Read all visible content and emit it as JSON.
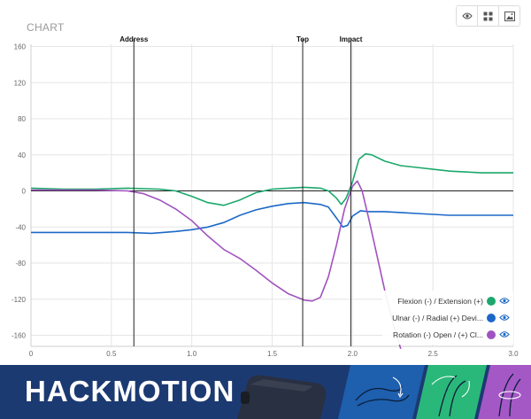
{
  "chart_title": "CHART",
  "toolbar": {
    "icons": [
      "eye-icon",
      "grid-icon",
      "image-icon"
    ]
  },
  "colors": {
    "flexion": "#1ca86c",
    "ulnar": "#1c68c8",
    "rotation": "#a052c0",
    "footer_bg": "#1c3a72",
    "tile_blue": "#1e5fae",
    "tile_green": "#2ab87a",
    "tile_purple": "#a458c6"
  },
  "legend": [
    {
      "label": "Flexion (-) / Extension (+)",
      "color": "#1ca86c"
    },
    {
      "label": "Ulnar (-) / Radial (+) Devi...",
      "color": "#1c68c8"
    },
    {
      "label": "Rotation (-) Open / (+) Cl...",
      "color": "#a052c0"
    }
  ],
  "footer": {
    "logo_text": "HACKMOTION"
  },
  "chart_data": {
    "type": "line",
    "xlim": [
      0,
      3.0
    ],
    "ylim": [
      -170,
      165
    ],
    "x_ticks": [
      "0",
      "0.5",
      "1.0",
      "1.5",
      "2.0",
      "2.5",
      "3.0"
    ],
    "y_ticks": [
      "160",
      "120",
      "80",
      "40",
      "0",
      "-40",
      "-80",
      "-120",
      "-160"
    ],
    "markers": [
      {
        "label": "Address",
        "x": 0.64
      },
      {
        "label": "Top",
        "x": 1.69
      },
      {
        "label": "Impact",
        "x": 1.99
      }
    ],
    "series": [
      {
        "name": "Flexion (-) / Extension (+)",
        "color": "#1ca86c",
        "points": [
          [
            0,
            3
          ],
          [
            0.2,
            2
          ],
          [
            0.4,
            2
          ],
          [
            0.6,
            3
          ],
          [
            0.8,
            2
          ],
          [
            0.9,
            0
          ],
          [
            1.0,
            -6
          ],
          [
            1.1,
            -13
          ],
          [
            1.2,
            -16
          ],
          [
            1.3,
            -10
          ],
          [
            1.4,
            -2
          ],
          [
            1.5,
            2
          ],
          [
            1.6,
            3
          ],
          [
            1.7,
            4
          ],
          [
            1.8,
            3
          ],
          [
            1.85,
            0
          ],
          [
            1.9,
            -8
          ],
          [
            1.93,
            -15
          ],
          [
            1.96,
            -8
          ],
          [
            2.0,
            10
          ],
          [
            2.04,
            35
          ],
          [
            2.08,
            41
          ],
          [
            2.12,
            40
          ],
          [
            2.2,
            33
          ],
          [
            2.3,
            28
          ],
          [
            2.4,
            26
          ],
          [
            2.5,
            24
          ],
          [
            2.6,
            22
          ],
          [
            2.7,
            21
          ],
          [
            2.8,
            20
          ],
          [
            2.9,
            20
          ],
          [
            3.0,
            20
          ]
        ]
      },
      {
        "name": "Ulnar (-) / Radial (+) Devi...",
        "color": "#1c68c8",
        "points": [
          [
            0,
            -46
          ],
          [
            0.2,
            -46
          ],
          [
            0.4,
            -46
          ],
          [
            0.6,
            -46
          ],
          [
            0.75,
            -47
          ],
          [
            0.9,
            -45
          ],
          [
            1.0,
            -43
          ],
          [
            1.1,
            -40
          ],
          [
            1.2,
            -35
          ],
          [
            1.3,
            -27
          ],
          [
            1.4,
            -21
          ],
          [
            1.5,
            -17
          ],
          [
            1.6,
            -14
          ],
          [
            1.7,
            -13
          ],
          [
            1.8,
            -15
          ],
          [
            1.85,
            -18
          ],
          [
            1.9,
            -30
          ],
          [
            1.94,
            -40
          ],
          [
            1.97,
            -38
          ],
          [
            2.0,
            -28
          ],
          [
            2.05,
            -22
          ],
          [
            2.1,
            -23
          ],
          [
            2.2,
            -23
          ],
          [
            2.3,
            -24
          ],
          [
            2.4,
            -25
          ],
          [
            2.5,
            -26
          ],
          [
            2.6,
            -27
          ],
          [
            2.7,
            -27
          ],
          [
            2.8,
            -27
          ],
          [
            2.9,
            -27
          ],
          [
            3.0,
            -27
          ]
        ]
      },
      {
        "name": "Rotation (-) Open / (+) Cl...",
        "color": "#a052c0",
        "points": [
          [
            0,
            1
          ],
          [
            0.2,
            1
          ],
          [
            0.4,
            1
          ],
          [
            0.6,
            0
          ],
          [
            0.7,
            -3
          ],
          [
            0.8,
            -10
          ],
          [
            0.9,
            -20
          ],
          [
            1.0,
            -33
          ],
          [
            1.1,
            -50
          ],
          [
            1.2,
            -65
          ],
          [
            1.3,
            -75
          ],
          [
            1.4,
            -88
          ],
          [
            1.5,
            -102
          ],
          [
            1.6,
            -114
          ],
          [
            1.7,
            -121
          ],
          [
            1.75,
            -122
          ],
          [
            1.8,
            -118
          ],
          [
            1.85,
            -95
          ],
          [
            1.9,
            -60
          ],
          [
            1.95,
            -20
          ],
          [
            2.0,
            5
          ],
          [
            2.03,
            11
          ],
          [
            2.06,
            0
          ],
          [
            2.1,
            -30
          ],
          [
            2.15,
            -70
          ],
          [
            2.2,
            -110
          ],
          [
            2.25,
            -145
          ],
          [
            2.3,
            -175
          ]
        ]
      }
    ]
  }
}
